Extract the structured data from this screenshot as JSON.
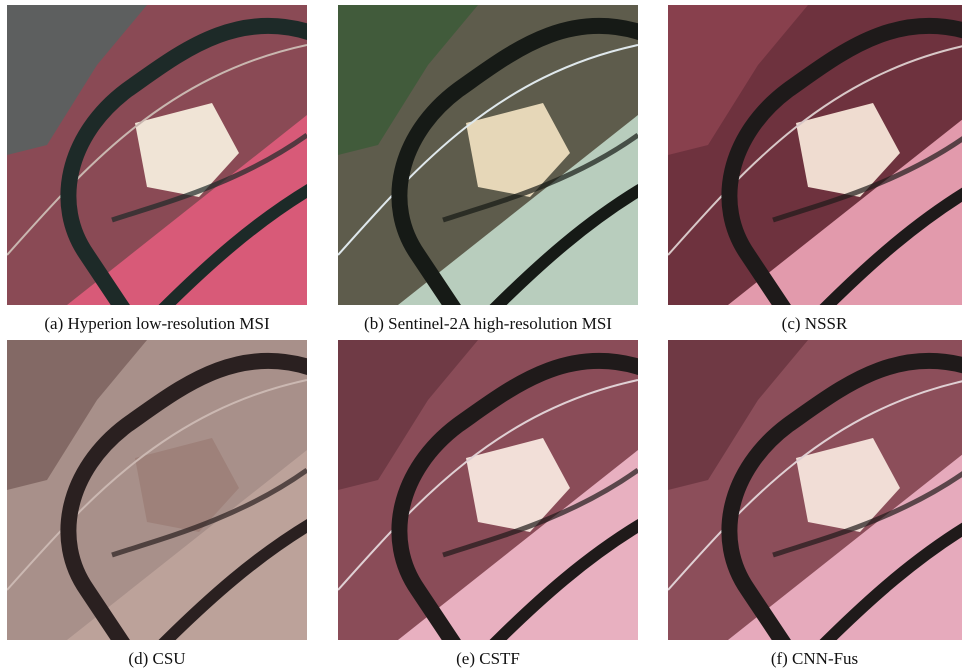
{
  "figure": {
    "panels": [
      {
        "caption": "(a) Hyperion low-resolution MSI"
      },
      {
        "caption": "(b) Sentinel-2A high-resolution MSI"
      },
      {
        "caption": "(c) NSSR"
      },
      {
        "caption": "(d) CSU"
      },
      {
        "caption": "(e) CSTF"
      },
      {
        "caption": "(f) CNN-Fus"
      }
    ]
  }
}
